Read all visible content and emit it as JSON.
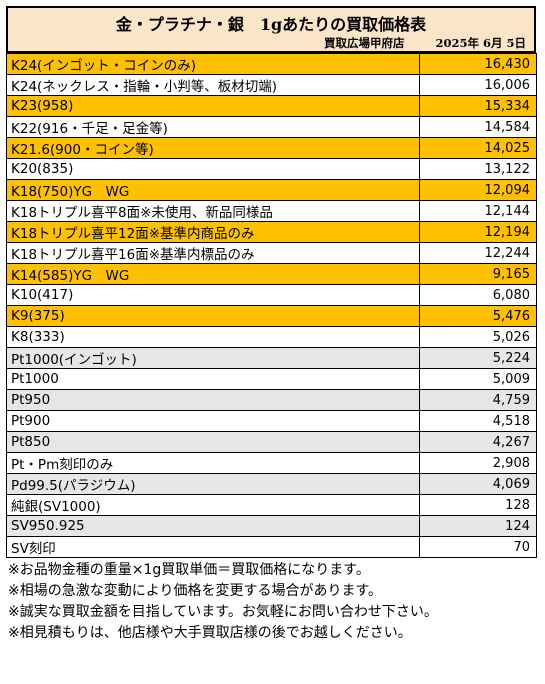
{
  "header": {
    "title": "金・プラチナ・銀　1gあたりの買取価格表",
    "store": "買取広場甲府店",
    "date": "2025年 6月 5日"
  },
  "rows": [
    {
      "name": "K24(インゴット・コインのみ)",
      "price": "16,430",
      "style": "gold"
    },
    {
      "name": "K24(ネックレス・指輪・小判等、板材切端)",
      "price": "16,006",
      "style": "white"
    },
    {
      "name": "K23(958)",
      "price": "15,334",
      "style": "gold"
    },
    {
      "name": "K22(916・千足・足金等)",
      "price": "14,584",
      "style": "white"
    },
    {
      "name": "K21.6(900・コイン等)",
      "price": "14,025",
      "style": "gold"
    },
    {
      "name": "K20(835)",
      "price": "13,122",
      "style": "white"
    },
    {
      "name": "K18(750)YG　WG",
      "price": "12,094",
      "style": "gold"
    },
    {
      "name": "K18トリプル喜平8面※未使用、新品同様品",
      "price": "12,144",
      "style": "white"
    },
    {
      "name": "K18トリプル喜平12面※基準内商品のみ",
      "price": "12,194",
      "style": "gold"
    },
    {
      "name": "K18トリプル喜平16面※基準内標品のみ",
      "price": "12,244",
      "style": "white"
    },
    {
      "name": "K14(585)YG　WG",
      "price": "9,165",
      "style": "gold"
    },
    {
      "name": "K10(417)",
      "price": "6,080",
      "style": "white"
    },
    {
      "name": "K9(375)",
      "price": "5,476",
      "style": "gold"
    },
    {
      "name": "K8(333)",
      "price": "5,026",
      "style": "white"
    },
    {
      "name": "Pt1000(インゴット)",
      "price": "5,224",
      "style": "gray"
    },
    {
      "name": "Pt1000",
      "price": "5,009",
      "style": "white"
    },
    {
      "name": "Pt950",
      "price": "4,759",
      "style": "gray"
    },
    {
      "name": "Pt900",
      "price": "4,518",
      "style": "white"
    },
    {
      "name": "Pt850",
      "price": "4,267",
      "style": "gray"
    },
    {
      "name": "Pt・Pm刻印のみ",
      "price": "2,908",
      "style": "white"
    },
    {
      "name": "Pd99.5(パラジウム)",
      "price": "4,069",
      "style": "gray"
    },
    {
      "name": "純銀(SV1000)",
      "price": "128",
      "style": "white"
    },
    {
      "name": "SV950.925",
      "price": "124",
      "style": "gray"
    },
    {
      "name": "SV刻印",
      "price": "70",
      "style": "white"
    }
  ],
  "notes": [
    "※お品物金種の重量×1g買取単価＝買取価格になります。",
    "※相場の急激な変動により価格を変更する場合があります。",
    "※誠実な買取金額を目指しています。お気軽にお問い合わせ下さい。",
    "※相見積もりは、他店様や大手買取店様の後でお越しください。"
  ]
}
